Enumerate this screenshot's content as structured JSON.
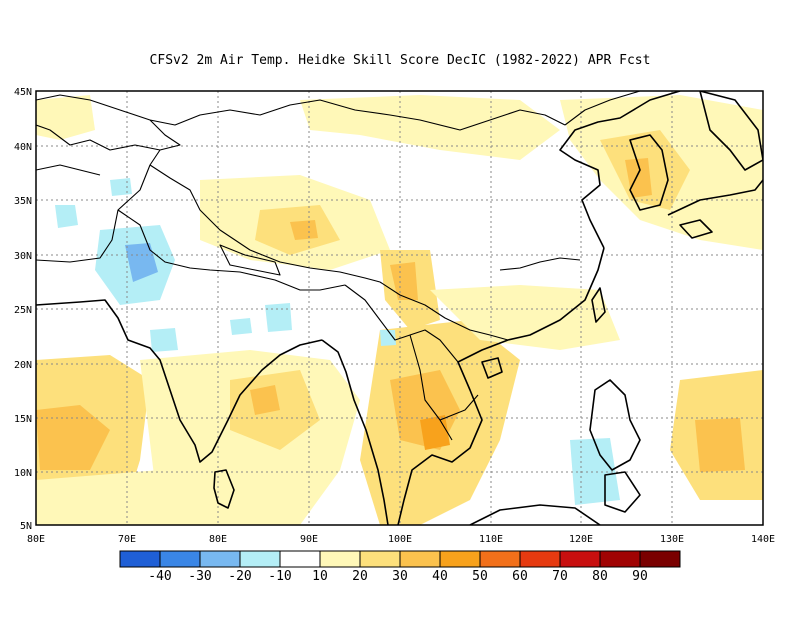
{
  "title": "CFSv2  2m Air Temp. Heidke Skill Score DecIC (1982-2022) APR Fcst",
  "lon_ticks": [
    "80E",
    "70E",
    "80E",
    "90E",
    "100E",
    "110E",
    "120E",
    "130E",
    "140E"
  ],
  "lat_ticks": [
    "45N",
    "40N",
    "35N",
    "30N",
    "25N",
    "20N",
    "15N",
    "10N",
    "5N"
  ],
  "colorbar": {
    "colors": [
      "#1f5fd6",
      "#3a86e6",
      "#78b8f0",
      "#b4eef6",
      "#ffffff",
      "#fff8b8",
      "#fde07c",
      "#fbc24e",
      "#f8a21c",
      "#f2701a",
      "#e63a10",
      "#c80f0f",
      "#a00303",
      "#7a0000"
    ],
    "labels": [
      "-40",
      "-30",
      "-20",
      "-10",
      "10",
      "20",
      "30",
      "40",
      "50",
      "60",
      "70",
      "80",
      "90"
    ]
  }
}
